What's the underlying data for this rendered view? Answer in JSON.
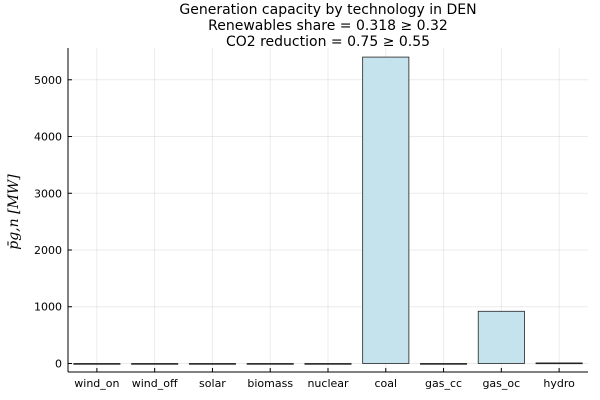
{
  "chart_data": {
    "type": "bar",
    "title": [
      "Generation capacity by technology in DEN",
      "Renewables share = 0.318 ≥ 0.32",
      "CO2 reduction = 0.75 ≥ 0.55"
    ],
    "xlabel": "",
    "ylabel": "p̄g,n [MW]",
    "categories": [
      "wind_on",
      "wind_off",
      "solar",
      "biomass",
      "nuclear",
      "coal",
      "gas_cc",
      "gas_oc",
      "hydro"
    ],
    "values": [
      0,
      0,
      0,
      0,
      0,
      5400,
      0,
      920,
      10
    ],
    "ylim": [
      -150,
      5560
    ],
    "yticks": [
      0,
      1000,
      2000,
      3000,
      4000,
      5000
    ],
    "grid": true,
    "legend": "none",
    "bar_color": "#c5e3ec",
    "bar_edge_color": "#222222"
  }
}
